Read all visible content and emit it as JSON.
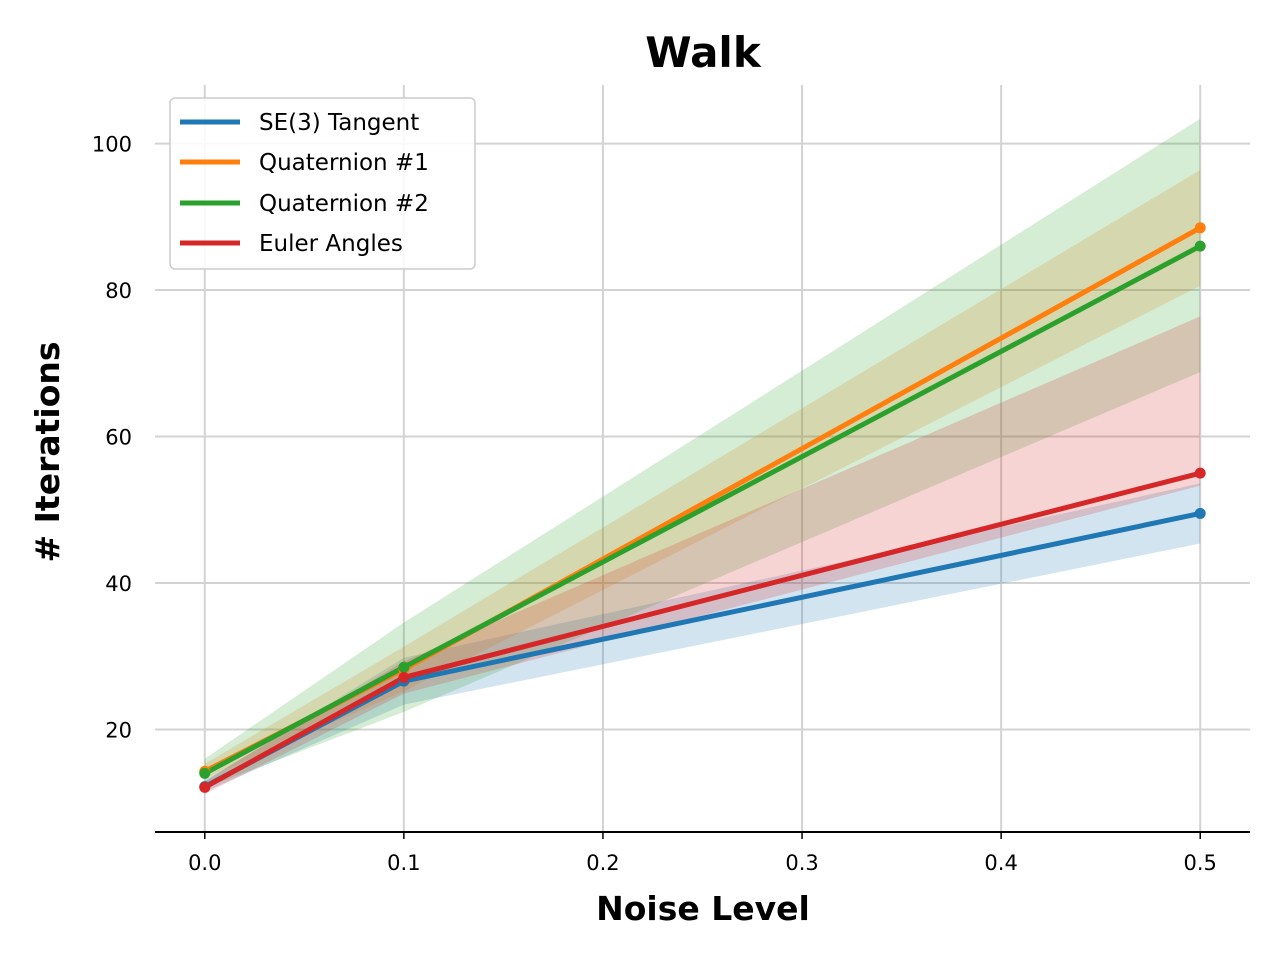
{
  "chart_data": {
    "type": "line",
    "title": "Walk",
    "xlabel": "Noise Level",
    "ylabel": "# Iterations",
    "x": [
      0.0,
      0.1,
      0.5
    ],
    "xlim": [
      -0.025,
      0.525
    ],
    "ylim": [
      6,
      108
    ],
    "xticks": [
      0.0,
      0.1,
      0.2,
      0.3,
      0.4,
      0.5
    ],
    "xtick_labels": [
      "0.0",
      "0.1",
      "0.2",
      "0.3",
      "0.4",
      "0.5"
    ],
    "yticks": [
      20,
      40,
      60,
      80,
      100
    ],
    "ytick_labels": [
      "20",
      "40",
      "60",
      "80",
      "100"
    ],
    "grid": true,
    "legend_position": "top-left",
    "series": [
      {
        "name": "SE(3) Tangent",
        "color": "#1f77b4",
        "values": [
          12.2,
          26.6,
          49.5
        ],
        "lower": [
          11.5,
          23.4,
          45.4
        ],
        "upper": [
          12.9,
          29.8,
          53.6
        ]
      },
      {
        "name": "Quaternion #1",
        "color": "#ff7f0e",
        "values": [
          14.3,
          28.2,
          88.5
        ],
        "lower": [
          13.3,
          25.2,
          80.6
        ],
        "upper": [
          15.3,
          31.3,
          96.4
        ]
      },
      {
        "name": "Quaternion #2",
        "color": "#2ca02c",
        "values": [
          14.0,
          28.5,
          86.0
        ],
        "lower": [
          12.0,
          22.4,
          68.8
        ],
        "upper": [
          16.0,
          34.6,
          103.4
        ]
      },
      {
        "name": "Euler Angles",
        "color": "#d62728",
        "values": [
          12.1,
          27.1,
          55.0
        ],
        "lower": [
          11.2,
          24.9,
          53.3
        ],
        "upper": [
          13.0,
          29.3,
          76.4
        ]
      }
    ]
  }
}
